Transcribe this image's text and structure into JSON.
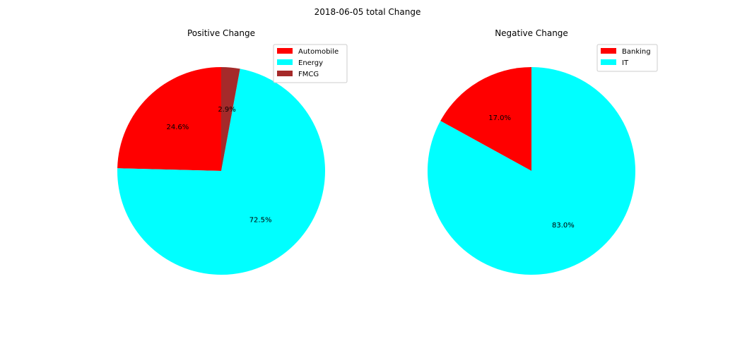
{
  "figure": {
    "suptitle": "2018-06-05 total Change"
  },
  "chart_data": [
    {
      "type": "pie",
      "title": "Positive Change",
      "categories": [
        "Automobile",
        "Energy",
        "FMCG"
      ],
      "values": [
        24.6,
        72.5,
        2.9
      ],
      "labels": [
        "24.6%",
        "72.5%",
        "2.9%"
      ],
      "colors": [
        "#ff0000",
        "#00ffff",
        "#a52a2a"
      ],
      "start_angle": 90,
      "direction": "counterclockwise",
      "legend_placement": "upper-right"
    },
    {
      "type": "pie",
      "title": "Negative Change",
      "categories": [
        "Banking",
        "IT"
      ],
      "values": [
        17.0,
        83.0
      ],
      "labels": [
        "17.0%",
        "83.0%"
      ],
      "colors": [
        "#ff0000",
        "#00ffff"
      ],
      "start_angle": 90,
      "direction": "counterclockwise",
      "legend_placement": "upper-right"
    }
  ]
}
